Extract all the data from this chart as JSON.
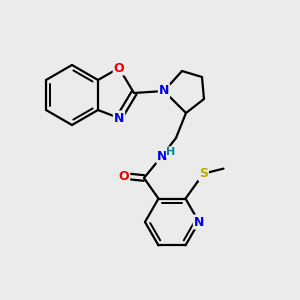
{
  "background_color": "#ebebeb",
  "atom_colors": {
    "C": "#000000",
    "N": "#0000ee",
    "O": "#ee0000",
    "S": "#bbaa00",
    "H": "#008899"
  },
  "figsize": [
    3.0,
    3.0
  ],
  "dpi": 100
}
